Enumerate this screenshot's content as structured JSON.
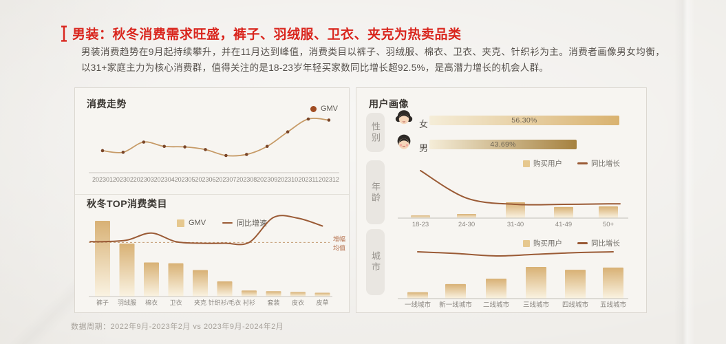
{
  "header": {
    "title": "男装：秋冬消费需求旺盛，裤子、羽绒服、卫衣、夹克为热卖品类",
    "description": "男装消费趋势在9月起持续攀升，并在11月达到峰值，消费类目以裤子、羽绒服、棉衣、卫衣、夹克、针织衫为主。消费者画像男女均衡，以31+家庭主力为核心消费群，值得关注的是18-23岁年轻买家数同比增长超92.5%，是高潜力增长的机会人群。"
  },
  "right_panel": {
    "title": "用户画像"
  },
  "footer": {
    "data_period": "数据周期：2022年9月-2023年2月 vs 2023年9月-2024年2月"
  },
  "colors": {
    "accent_red": "#d9251d",
    "line_tan": "#c69a66",
    "line_brown": "#9a5a35",
    "bar_gold_top": "#d8b175",
    "bar_gold_bottom": "#faf3e2",
    "male_bar_end": "#a5813f",
    "female_bar_end": "#d9b26f"
  },
  "chart_data": [
    {
      "id": "consumption-trend",
      "type": "line",
      "title": "消费走势",
      "categories": [
        "202301",
        "202302",
        "202303",
        "202304",
        "202305",
        "202306",
        "202307",
        "202308",
        "202309",
        "202310",
        "202311",
        "202312"
      ],
      "series": [
        {
          "name": "GMV",
          "values": [
            38,
            35,
            54,
            46,
            45,
            40,
            29,
            31,
            46,
            73,
            97,
            95
          ]
        }
      ],
      "legend_position": "top-right",
      "grid": false
    },
    {
      "id": "top-categories",
      "type": "bar+line",
      "title": "秋冬TOP消费类目",
      "categories": [
        "裤子",
        "羽绒服",
        "棉衣",
        "卫衣",
        "夹克",
        "针织衫/毛衣",
        "衬衫",
        "套装",
        "皮衣",
        "皮草"
      ],
      "series": [
        {
          "name": "GMV",
          "type": "bar",
          "values": [
            100,
            70,
            45,
            44,
            35,
            20,
            8,
            7,
            6,
            5
          ]
        },
        {
          "name": "同比增速",
          "type": "line",
          "values": [
            73,
            75,
            84,
            73,
            71,
            71,
            72,
            104,
            103,
            93
          ]
        }
      ],
      "average_line": {
        "label": "增幅均值",
        "value": 72,
        "style": "dashed"
      },
      "legend_position": "top-center",
      "grid": false
    },
    {
      "id": "gender",
      "type": "bar",
      "title": "性别",
      "categories": [
        "女",
        "男"
      ],
      "values": [
        56.3,
        43.69
      ],
      "labels": [
        "56.30%",
        "43.69%"
      ]
    },
    {
      "id": "age",
      "type": "bar+line",
      "title": "年龄",
      "categories": [
        "18-23",
        "24-30",
        "31-40",
        "41-49",
        "50+"
      ],
      "series": [
        {
          "name": "购买用户",
          "type": "bar",
          "values": [
            17,
            26,
            100,
            70,
            74
          ]
        },
        {
          "name": "同比增长",
          "type": "line",
          "values": [
            92.5,
            35,
            22,
            22,
            23
          ],
          "unit": "%"
        }
      ],
      "legend_position": "top-right",
      "grid": false
    },
    {
      "id": "city",
      "type": "bar+line",
      "title": "城市",
      "categories": [
        "一线城市",
        "新一线城市",
        "二线城市",
        "三线城市",
        "四线城市",
        "五线城市"
      ],
      "series": [
        {
          "name": "购买用户",
          "type": "bar",
          "values": [
            20,
            46,
            63,
            100,
            91,
            98
          ]
        },
        {
          "name": "同比增长",
          "type": "line",
          "values": [
            65,
            63,
            60,
            62,
            64,
            65
          ]
        }
      ],
      "legend_position": "top-right",
      "grid": false
    }
  ]
}
